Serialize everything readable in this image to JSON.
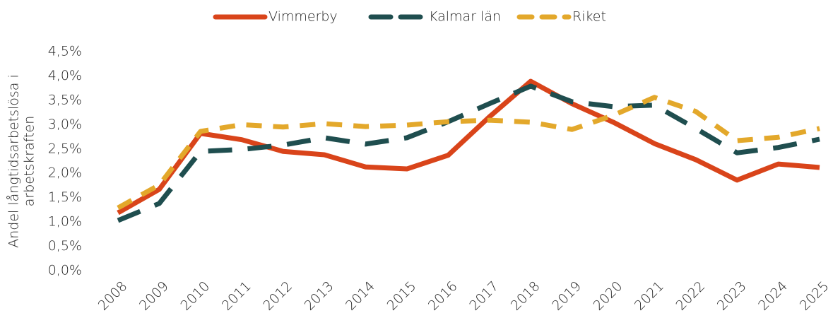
{
  "chart_data": {
    "type": "line",
    "ylabel": [
      "Andel långtidsarbetslösa i",
      "arbetskraften"
    ],
    "categories": [
      "2008",
      "2009",
      "2010",
      "2011",
      "2012",
      "2013",
      "2014",
      "2015",
      "2016",
      "2017",
      "2018",
      "2019",
      "2020",
      "2021",
      "2022",
      "2023",
      "2024",
      "2025"
    ],
    "series": [
      {
        "name": "Vimmerby",
        "color": "#d9441a",
        "dash": "solid",
        "values": [
          1.19,
          1.67,
          2.82,
          2.69,
          2.45,
          2.38,
          2.13,
          2.09,
          2.37,
          3.16,
          3.89,
          3.43,
          3.05,
          2.61,
          2.28,
          1.86,
          2.19,
          2.12
        ]
      },
      {
        "name": "Kalmar län",
        "color": "#1f4e4f",
        "dash": "long",
        "values": [
          1.03,
          1.38,
          2.45,
          2.49,
          2.58,
          2.73,
          2.6,
          2.73,
          3.06,
          3.43,
          3.79,
          3.47,
          3.37,
          3.4,
          2.92,
          2.42,
          2.53,
          2.7
        ]
      },
      {
        "name": "Riket",
        "color": "#e3a82b",
        "dash": "short",
        "values": [
          1.29,
          1.76,
          2.86,
          3.0,
          2.95,
          3.02,
          2.96,
          2.99,
          3.06,
          3.09,
          3.05,
          2.9,
          3.19,
          3.56,
          3.27,
          2.67,
          2.74,
          2.92
        ]
      }
    ],
    "ylim": [
      0,
      4.5
    ],
    "yticks": [
      {
        "value": 0,
        "label": "0,0%"
      },
      {
        "value": 0.5,
        "label": "0,5%"
      },
      {
        "value": 1,
        "label": "1,0%"
      },
      {
        "value": 1.5,
        "label": "1,5%"
      },
      {
        "value": 2,
        "label": "2,0%"
      },
      {
        "value": 2.5,
        "label": "2,5%"
      },
      {
        "value": 3,
        "label": "3,0%"
      },
      {
        "value": 3.5,
        "label": "3,5%"
      },
      {
        "value": 4,
        "label": "4,0%"
      },
      {
        "value": 4.5,
        "label": "4,5%"
      }
    ],
    "legend": "top",
    "grid": false
  }
}
